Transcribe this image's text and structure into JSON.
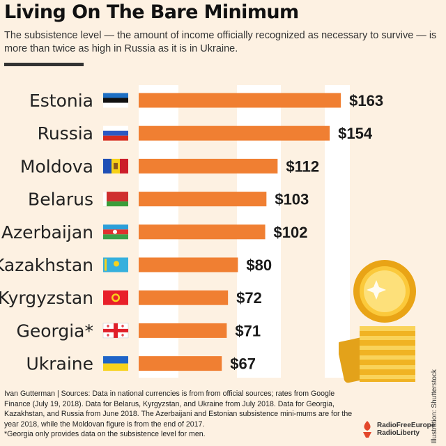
{
  "header": {
    "title": "Living On The Bare Minimum",
    "subtitle": "The subsistence level — the amount of income officially recognized as necessary to survive — is more than twice as high in Russia as it is in Ukraine."
  },
  "chart_data": {
    "type": "bar",
    "orientation": "horizontal",
    "categories": [
      "Estonia",
      "Russia",
      "Moldova",
      "Belarus",
      "Azerbaijan",
      "Kazakhstan",
      "Kyrgyzstan",
      "Georgia*",
      "Ukraine"
    ],
    "values": [
      163,
      154,
      112,
      103,
      102,
      80,
      72,
      71,
      67
    ],
    "value_labels": [
      "$163",
      "$154",
      "$112",
      "$103",
      "$102",
      "$80",
      "$72",
      "$71",
      "$67"
    ],
    "flags": [
      "flag-estonia-icon",
      "flag-russia-icon",
      "flag-moldova-icon",
      "flag-belarus-icon",
      "flag-azerbaijan-icon",
      "flag-kazakhstan-icon",
      "flag-kyrgyzstan-icon",
      "flag-georgia-icon",
      "flag-ukraine-icon"
    ],
    "xlim": [
      0,
      170
    ],
    "grid": "alternating vertical bands",
    "bar_color": "#f07f32"
  },
  "footer": {
    "sources": "Ivan Gutterman | Sources: Data in national currencies is from from official sources; rates from Google Finance (July 19, 2018). Data for Belarus, Kyrgyzstan, and Ukraine from July 2018. Data for Georgia, Kazakhstan, and Russia from June 2018. The Azerbaijani and Estonian subsistence mini-mums are for the year 2018, while the Moldovan figure is from the end of 2017.",
    "note": "*Georgia only provides data on the subsistence level for men."
  },
  "credit": "Illustration: Shutterstock",
  "logo": {
    "line1": "RadioFreeEurope",
    "line2": "RadioLiberty"
  },
  "colors": {
    "background": "#fdf1e2",
    "bar": "#f07f32",
    "band": "#ffffff",
    "text": "#222222"
  }
}
